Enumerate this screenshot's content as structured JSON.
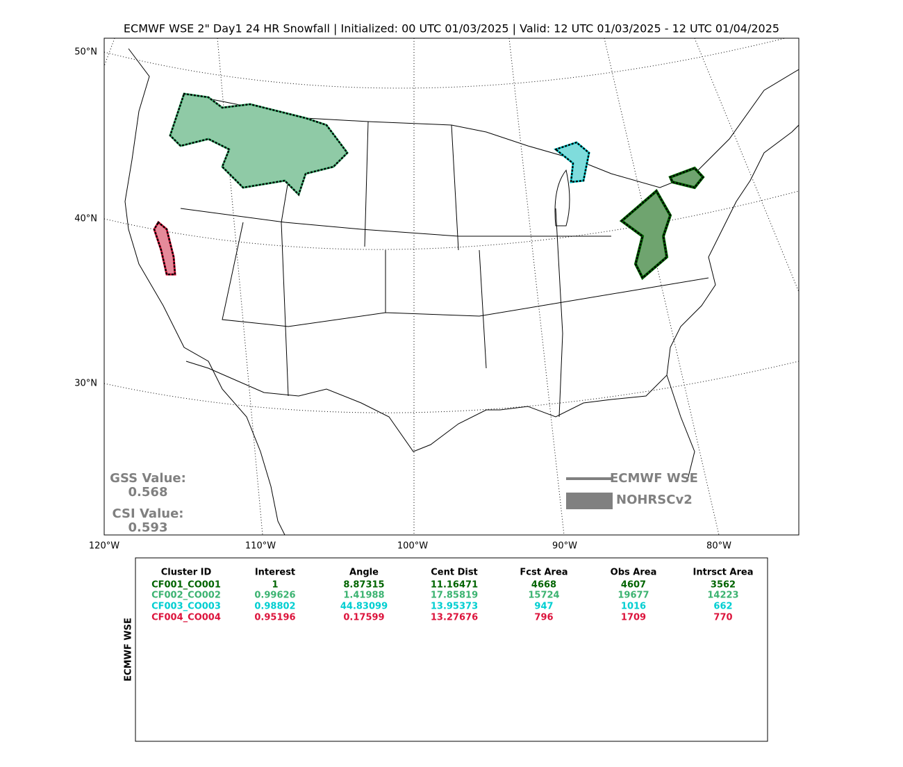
{
  "title": "ECMWF WSE 2\" Day1 24 HR Snowfall | Initialized: 00 UTC 01/03/2025 | Valid: 12 UTC 01/03/2025 - 12 UTC 01/04/2025",
  "map": {
    "lat_labels": [
      "50°N",
      "40°N",
      "30°N"
    ],
    "lon_labels": [
      "120°W",
      "110°W",
      "100°W",
      "90°W",
      "80°W"
    ]
  },
  "scores": {
    "gss_label": "GSS Value:",
    "gss": 0.568,
    "csi_label": "CSI Value:",
    "csi": 0.593
  },
  "legend": {
    "line": "ECMWF WSE",
    "patch": "NOHRSCv2"
  },
  "table": {
    "side_label": "ECMWF WSE",
    "columns": [
      "Cluster ID",
      "Interest",
      "Angle",
      "Cent Dist",
      "Fcst Area",
      "Obs Area",
      "Intrsct Area"
    ],
    "row_colors": [
      "#006400",
      "#3cb371",
      "#00ced1",
      "#dc143c"
    ],
    "rows": [
      [
        "CF001_CO001",
        1,
        8.87315,
        11.16471,
        4668,
        4607,
        3562
      ],
      [
        "CF002_CO002",
        0.99626,
        1.41988,
        17.85819,
        15724,
        19677,
        14223
      ],
      [
        "CF003_CO003",
        0.98802,
        44.83099,
        13.95373,
        947,
        1016,
        662
      ],
      [
        "CF004_CO004",
        0.95196,
        0.17599,
        13.27676,
        796,
        1709,
        770
      ]
    ]
  }
}
